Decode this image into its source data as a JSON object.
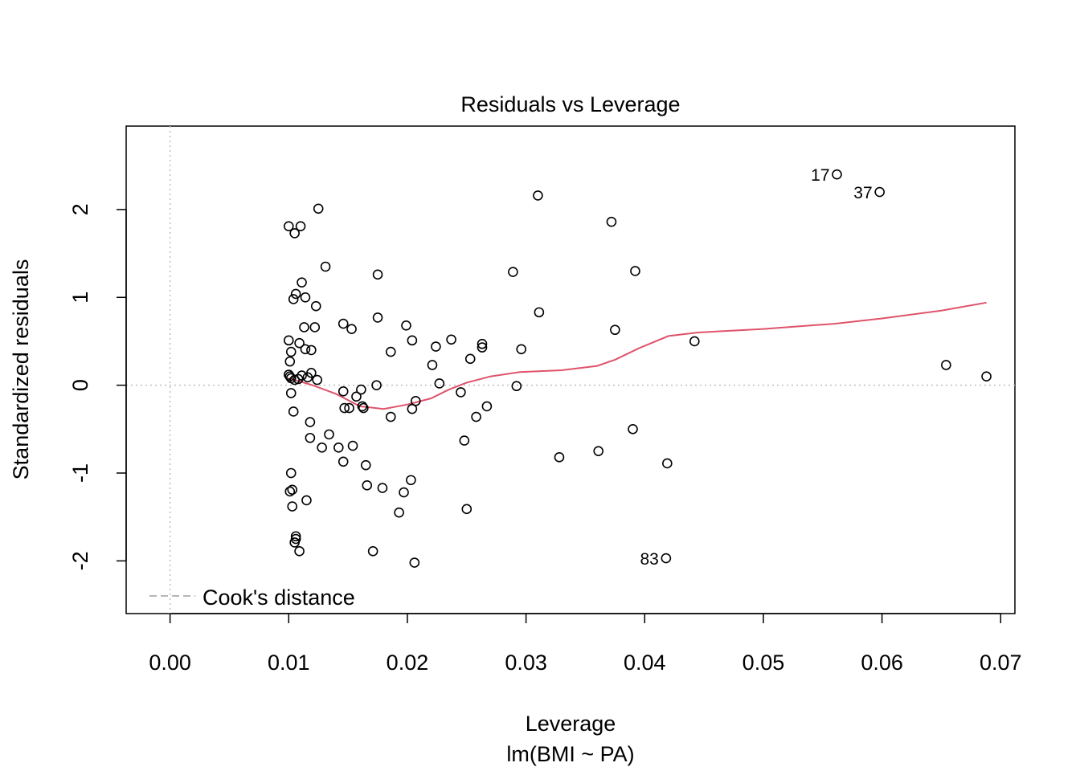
{
  "chart_data": {
    "type": "scatter",
    "title": "Residuals vs Leverage",
    "xlabel": "Leverage",
    "subtitle": "lm(BMI ~ PA)",
    "ylabel": "Standardized residuals",
    "xlim": [
      -0.0037,
      0.0712
    ],
    "ylim": [
      -2.6,
      2.95
    ],
    "x_ticks": [
      0.0,
      0.01,
      0.02,
      0.03,
      0.04,
      0.05,
      0.06,
      0.07
    ],
    "x_tick_labels": [
      "0.00",
      "0.01",
      "0.02",
      "0.03",
      "0.04",
      "0.05",
      "0.06",
      "0.07"
    ],
    "y_ticks": [
      -2,
      -1,
      0,
      1,
      2
    ],
    "y_tick_labels": [
      "-2",
      "-1",
      "0",
      "1",
      "2"
    ],
    "legend": {
      "label": "Cook's distance",
      "position": "bottom-left",
      "line_style": "dashed"
    },
    "reference_lines": {
      "y": 0,
      "x": 0,
      "style": "dotted"
    },
    "point_color": "#000000",
    "smooth_color": "#DF536B",
    "ref_color": "#BEBEBE",
    "legend_color": "#9E9E9E",
    "points": [
      {
        "x": 0.01,
        "y": 1.81
      },
      {
        "x": 0.011,
        "y": 1.81
      },
      {
        "x": 0.0105,
        "y": 1.73
      },
      {
        "x": 0.0125,
        "y": 2.01
      },
      {
        "x": 0.0131,
        "y": 1.35
      },
      {
        "x": 0.0111,
        "y": 1.17
      },
      {
        "x": 0.0175,
        "y": 1.26
      },
      {
        "x": 0.0106,
        "y": 1.04
      },
      {
        "x": 0.0104,
        "y": 0.98
      },
      {
        "x": 0.0114,
        "y": 1.0
      },
      {
        "x": 0.0123,
        "y": 0.9
      },
      {
        "x": 0.0113,
        "y": 0.66
      },
      {
        "x": 0.0122,
        "y": 0.66
      },
      {
        "x": 0.01,
        "y": 0.51
      },
      {
        "x": 0.0109,
        "y": 0.48
      },
      {
        "x": 0.0102,
        "y": 0.38
      },
      {
        "x": 0.0114,
        "y": 0.41
      },
      {
        "x": 0.0119,
        "y": 0.4
      },
      {
        "x": 0.0146,
        "y": 0.7
      },
      {
        "x": 0.0153,
        "y": 0.64
      },
      {
        "x": 0.0175,
        "y": 0.77
      },
      {
        "x": 0.0186,
        "y": 0.38
      },
      {
        "x": 0.0199,
        "y": 0.68
      },
      {
        "x": 0.0204,
        "y": 0.51
      },
      {
        "x": 0.0101,
        "y": 0.27
      },
      {
        "x": 0.01,
        "y": 0.12
      },
      {
        "x": 0.0101,
        "y": 0.1
      },
      {
        "x": 0.0102,
        "y": 0.08
      },
      {
        "x": 0.0105,
        "y": 0.06
      },
      {
        "x": 0.0108,
        "y": 0.07
      },
      {
        "x": 0.0111,
        "y": 0.11
      },
      {
        "x": 0.0116,
        "y": 0.09
      },
      {
        "x": 0.0119,
        "y": 0.14
      },
      {
        "x": 0.0124,
        "y": 0.06
      },
      {
        "x": 0.0102,
        "y": -0.09
      },
      {
        "x": 0.0104,
        "y": -0.3
      },
      {
        "x": 0.0146,
        "y": -0.07
      },
      {
        "x": 0.0157,
        "y": -0.13
      },
      {
        "x": 0.0161,
        "y": -0.05
      },
      {
        "x": 0.0174,
        "y": 0.0
      },
      {
        "x": 0.0147,
        "y": -0.26
      },
      {
        "x": 0.0151,
        "y": -0.26
      },
      {
        "x": 0.0162,
        "y": -0.24
      },
      {
        "x": 0.0163,
        "y": -0.26
      },
      {
        "x": 0.0186,
        "y": -0.36
      },
      {
        "x": 0.0204,
        "y": -0.27
      },
      {
        "x": 0.0207,
        "y": -0.18
      },
      {
        "x": 0.0118,
        "y": -0.42
      },
      {
        "x": 0.0118,
        "y": -0.6
      },
      {
        "x": 0.0134,
        "y": -0.56
      },
      {
        "x": 0.0128,
        "y": -0.71
      },
      {
        "x": 0.0142,
        "y": -0.71
      },
      {
        "x": 0.0154,
        "y": -0.69
      },
      {
        "x": 0.0146,
        "y": -0.87
      },
      {
        "x": 0.0165,
        "y": -0.91
      },
      {
        "x": 0.0102,
        "y": -1.0
      },
      {
        "x": 0.0101,
        "y": -1.21
      },
      {
        "x": 0.0103,
        "y": -1.19
      },
      {
        "x": 0.0103,
        "y": -1.38
      },
      {
        "x": 0.0115,
        "y": -1.31
      },
      {
        "x": 0.0166,
        "y": -1.14
      },
      {
        "x": 0.0179,
        "y": -1.17
      },
      {
        "x": 0.0197,
        "y": -1.22
      },
      {
        "x": 0.0203,
        "y": -1.08
      },
      {
        "x": 0.0193,
        "y": -1.45
      },
      {
        "x": 0.0106,
        "y": -1.72
      },
      {
        "x": 0.0106,
        "y": -1.75
      },
      {
        "x": 0.0105,
        "y": -1.79
      },
      {
        "x": 0.0109,
        "y": -1.89
      },
      {
        "x": 0.0171,
        "y": -1.89
      },
      {
        "x": 0.0206,
        "y": -2.02
      },
      {
        "x": 0.031,
        "y": 2.16
      },
      {
        "x": 0.0372,
        "y": 1.86
      },
      {
        "x": 0.0289,
        "y": 1.29
      },
      {
        "x": 0.0392,
        "y": 1.3
      },
      {
        "x": 0.0311,
        "y": 0.83
      },
      {
        "x": 0.0375,
        "y": 0.63
      },
      {
        "x": 0.0237,
        "y": 0.52
      },
      {
        "x": 0.0224,
        "y": 0.44
      },
      {
        "x": 0.0263,
        "y": 0.47
      },
      {
        "x": 0.0263,
        "y": 0.43
      },
      {
        "x": 0.0296,
        "y": 0.41
      },
      {
        "x": 0.0253,
        "y": 0.3
      },
      {
        "x": 0.0221,
        "y": 0.23
      },
      {
        "x": 0.0227,
        "y": 0.02
      },
      {
        "x": 0.0245,
        "y": -0.08
      },
      {
        "x": 0.0292,
        "y": -0.01
      },
      {
        "x": 0.0258,
        "y": -0.36
      },
      {
        "x": 0.0267,
        "y": -0.24
      },
      {
        "x": 0.0248,
        "y": -0.63
      },
      {
        "x": 0.0328,
        "y": -0.82
      },
      {
        "x": 0.0361,
        "y": -0.75
      },
      {
        "x": 0.039,
        "y": -0.5
      },
      {
        "x": 0.0419,
        "y": -0.89
      },
      {
        "x": 0.025,
        "y": -1.41
      },
      {
        "x": 0.0442,
        "y": 0.5
      },
      {
        "x": 0.0654,
        "y": 0.23
      },
      {
        "x": 0.0688,
        "y": 0.1
      },
      {
        "x": 0.0562,
        "y": 2.4,
        "label": "17"
      },
      {
        "x": 0.0598,
        "y": 2.2,
        "label": "37"
      },
      {
        "x": 0.0418,
        "y": -1.97,
        "label": "83"
      }
    ],
    "smooth_line": [
      [
        0.01,
        0.08
      ],
      [
        0.012,
        0.0
      ],
      [
        0.014,
        -0.1
      ],
      [
        0.016,
        -0.24
      ],
      [
        0.018,
        -0.27
      ],
      [
        0.02,
        -0.22
      ],
      [
        0.022,
        -0.15
      ],
      [
        0.0235,
        -0.05
      ],
      [
        0.025,
        0.03
      ],
      [
        0.027,
        0.1
      ],
      [
        0.0295,
        0.15
      ],
      [
        0.033,
        0.17
      ],
      [
        0.036,
        0.22
      ],
      [
        0.0375,
        0.29
      ],
      [
        0.0395,
        0.42
      ],
      [
        0.042,
        0.56
      ],
      [
        0.0445,
        0.6
      ],
      [
        0.05,
        0.64
      ],
      [
        0.056,
        0.7
      ],
      [
        0.06,
        0.76
      ],
      [
        0.065,
        0.85
      ],
      [
        0.0688,
        0.94
      ]
    ]
  }
}
